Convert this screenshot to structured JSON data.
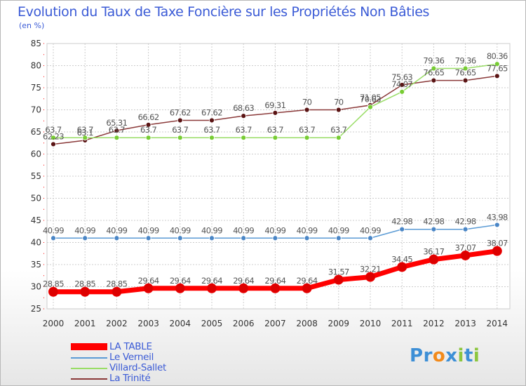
{
  "chart_data": {
    "type": "line",
    "title": "Evolution du Taux de Taxe Foncière sur les Propriétés Non Bâties",
    "ylabel": "(en %)",
    "xlabel": "",
    "ylim": [
      25,
      85
    ],
    "yticks": [
      25,
      30,
      35,
      40,
      45,
      50,
      55,
      60,
      65,
      70,
      75,
      80,
      85
    ],
    "categories": [
      "2000",
      "2001",
      "2002",
      "2003",
      "2004",
      "2005",
      "2006",
      "2007",
      "2008",
      "2009",
      "2010",
      "2011",
      "2012",
      "2013",
      "2014"
    ],
    "grid": true,
    "series": [
      {
        "name": "LA TABLE",
        "color": "#ff0000",
        "markerColor": "#dd0000",
        "values": [
          28.85,
          28.85,
          28.85,
          29.64,
          29.64,
          29.64,
          29.64,
          29.64,
          29.64,
          31.57,
          32.21,
          34.45,
          36.17,
          37.07,
          38.07
        ],
        "labels": [
          "28.85",
          "28.85",
          "28.85",
          "29.64",
          "29.64",
          "29.64",
          "29.64",
          "29.64",
          "29.64",
          "31.57",
          "32.21",
          "34.45",
          "36.17",
          "37.07",
          "38.07"
        ]
      },
      {
        "name": "Le Verneil",
        "color": "#5b9bd5",
        "markerColor": "#4a86c6",
        "values": [
          40.99,
          40.99,
          40.99,
          40.99,
          40.99,
          40.99,
          40.99,
          40.99,
          40.99,
          40.99,
          40.99,
          42.98,
          42.98,
          42.98,
          43.98
        ],
        "labels": [
          "40.99",
          "40.99",
          "40.99",
          "40.99",
          "40.99",
          "40.99",
          "40.99",
          "40.99",
          "40.99",
          "40.99",
          "40.99",
          "42.98",
          "42.98",
          "42.98",
          "43.98"
        ]
      },
      {
        "name": "Villard-Sallet",
        "color": "#99dd66",
        "markerColor": "#77cc33",
        "values": [
          63.7,
          63.7,
          63.7,
          63.7,
          63.7,
          63.7,
          63.7,
          63.7,
          63.7,
          63.7,
          70.63,
          74.07,
          79.36,
          79.36,
          80.36
        ],
        "labels": [
          "63.7",
          "63.7",
          "63.7",
          "63.7",
          "63.7",
          "63.7",
          "63.7",
          "63.7",
          "63.7",
          "63.7",
          "70.63",
          "74.07",
          "79.36",
          "79.36",
          "80.36"
        ]
      },
      {
        "name": "La Trinité",
        "color": "#8b3a3a",
        "markerColor": "#5a1414",
        "values": [
          62.23,
          63.1,
          65.31,
          66.62,
          67.62,
          67.62,
          68.63,
          69.31,
          70,
          70,
          71.05,
          75.63,
          76.65,
          76.65,
          77.65
        ],
        "labels": [
          "62.23",
          "63.1",
          "65.31",
          "66.62",
          "67.62",
          "67.62",
          "68.63",
          "69.31",
          "70",
          "70",
          "71.05",
          "75.63",
          "76.65",
          "76.65",
          "77.65"
        ]
      }
    ]
  },
  "legend": {
    "items": [
      {
        "label": "LA TABLE",
        "color": "#ff0000"
      },
      {
        "label": "Le Verneil",
        "color": "#5b9bd5"
      },
      {
        "label": "Villard-Sallet",
        "color": "#99dd66"
      },
      {
        "label": "La Trinité",
        "color": "#8b3a3a"
      }
    ]
  },
  "logo": {
    "text": "Proxiti",
    "letters": [
      "P",
      "r",
      "o",
      "x",
      "i",
      "t",
      "i"
    ],
    "colors": [
      "#3d8fd6",
      "#3d8fd6",
      "#f28a1a",
      "#3d8fd6",
      "#8cc63f",
      "#3d8fd6",
      "#8cc63f"
    ]
  }
}
